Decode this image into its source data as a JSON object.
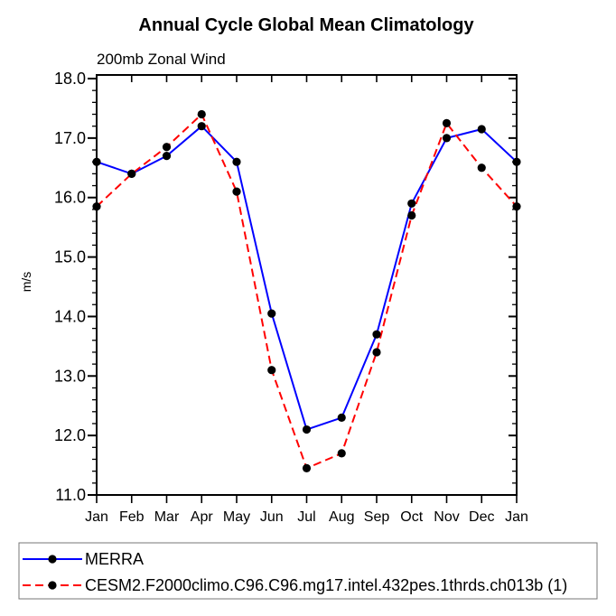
{
  "chart_data": {
    "type": "line",
    "title": "Annual Cycle Global Mean Climatology",
    "subtitle": "200mb Zonal Wind",
    "ylabel": "m/s",
    "xlabel": "",
    "categories": [
      "Jan",
      "Feb",
      "Mar",
      "Apr",
      "May",
      "Jun",
      "Jul",
      "Aug",
      "Sep",
      "Oct",
      "Nov",
      "Dec",
      "Jan"
    ],
    "ylim": [
      11.0,
      18.0
    ],
    "ytick_step": 1.0,
    "yminor_step": 0.2,
    "grid": false,
    "legend_position": "bottom-left",
    "marker_color": "#000000",
    "frame_color": "#000000",
    "series": [
      {
        "name": "MERRA",
        "color": "#0000ff",
        "line_style": "solid",
        "marker": "filled-circle",
        "values": [
          16.6,
          16.4,
          16.7,
          17.2,
          16.6,
          14.05,
          12.1,
          12.3,
          13.7,
          15.9,
          17.0,
          17.15,
          16.6
        ]
      },
      {
        "name": "CESM2.F2000climo.C96.C96.mg17.intel.432pes.1thrds.ch013b (1)",
        "color": "#ff0000",
        "line_style": "dashed",
        "marker": "filled-circle",
        "values": [
          15.85,
          16.4,
          16.85,
          17.4,
          16.1,
          13.1,
          11.45,
          11.7,
          13.4,
          15.7,
          17.25,
          16.5,
          15.85
        ]
      }
    ]
  }
}
